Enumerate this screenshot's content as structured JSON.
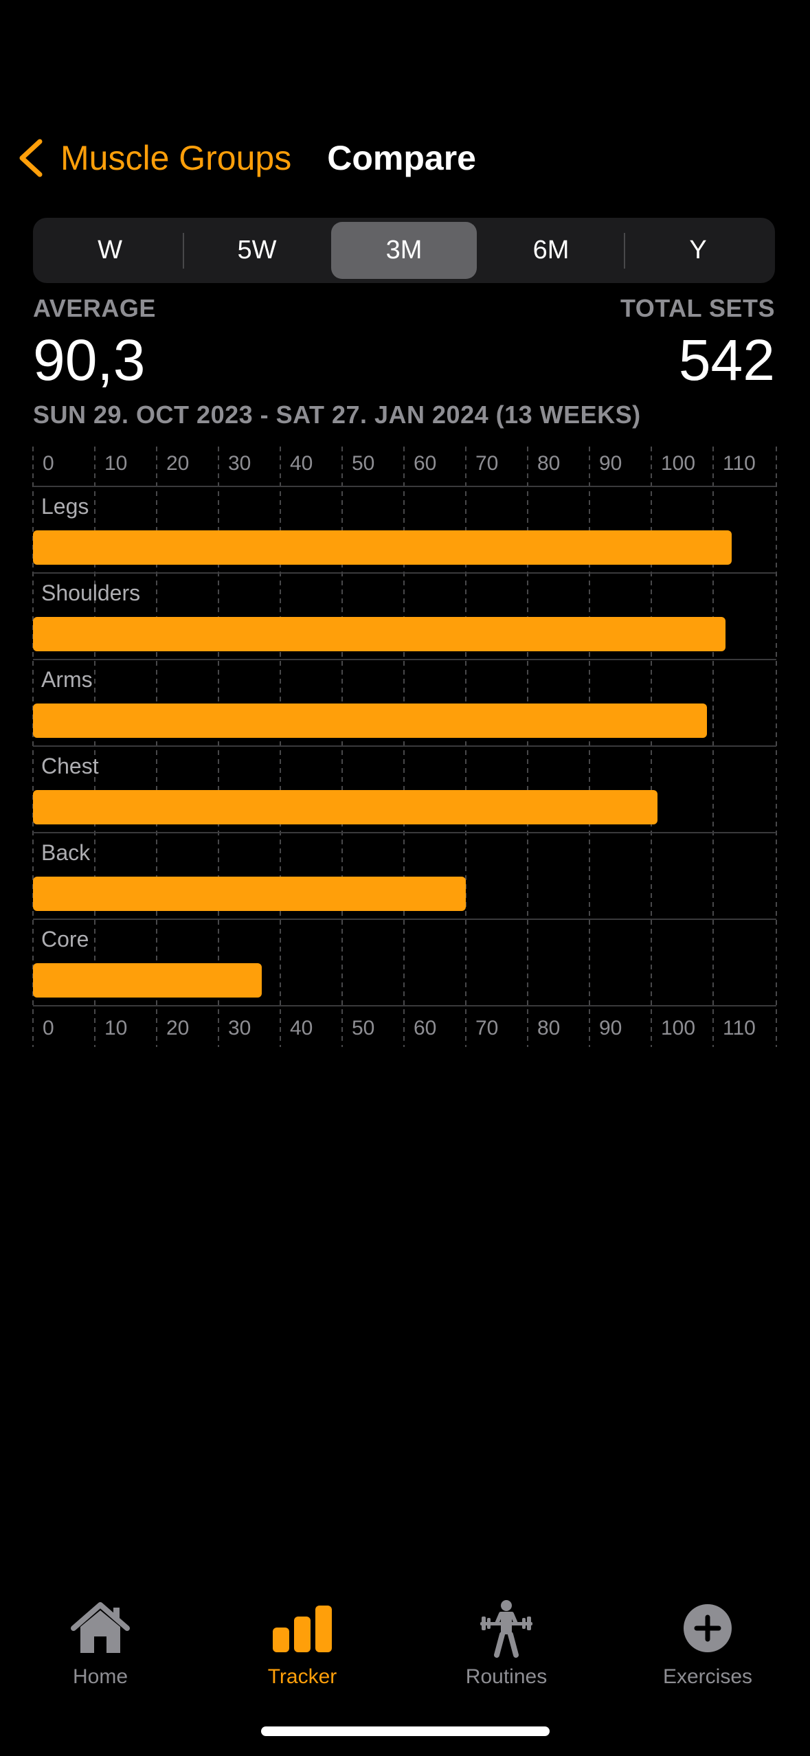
{
  "nav": {
    "back_label": "Muscle Groups",
    "title": "Compare"
  },
  "periods": [
    "W",
    "5W",
    "3M",
    "6M",
    "Y"
  ],
  "selected_period": "3M",
  "stats": {
    "average_label": "AVERAGE",
    "average_value": "90,3",
    "total_label": "TOTAL SETS",
    "total_value": "542"
  },
  "date_range": "SUN 29. OCT 2023 - SAT 27. JAN 2024 (13 WEEKS)",
  "colors": {
    "accent": "#ff9f0a",
    "bar": "#ff9f0a",
    "muted": "#8e8e93"
  },
  "chart_data": {
    "type": "bar",
    "orientation": "horizontal",
    "categories": [
      "Legs",
      "Shoulders",
      "Arms",
      "Chest",
      "Back",
      "Core"
    ],
    "values": [
      113,
      112,
      109,
      101,
      70,
      37
    ],
    "xlim": [
      0,
      120
    ],
    "xticks": [
      0,
      10,
      20,
      30,
      40,
      50,
      60,
      70,
      80,
      90,
      100,
      110
    ],
    "grid": true
  },
  "tabs": [
    {
      "label": "Home",
      "icon": "house-icon",
      "active": false
    },
    {
      "label": "Tracker",
      "icon": "bar-chart-icon",
      "active": true
    },
    {
      "label": "Routines",
      "icon": "weightlifter-icon",
      "active": false
    },
    {
      "label": "Exercises",
      "icon": "plus-circle-icon",
      "active": false
    }
  ]
}
